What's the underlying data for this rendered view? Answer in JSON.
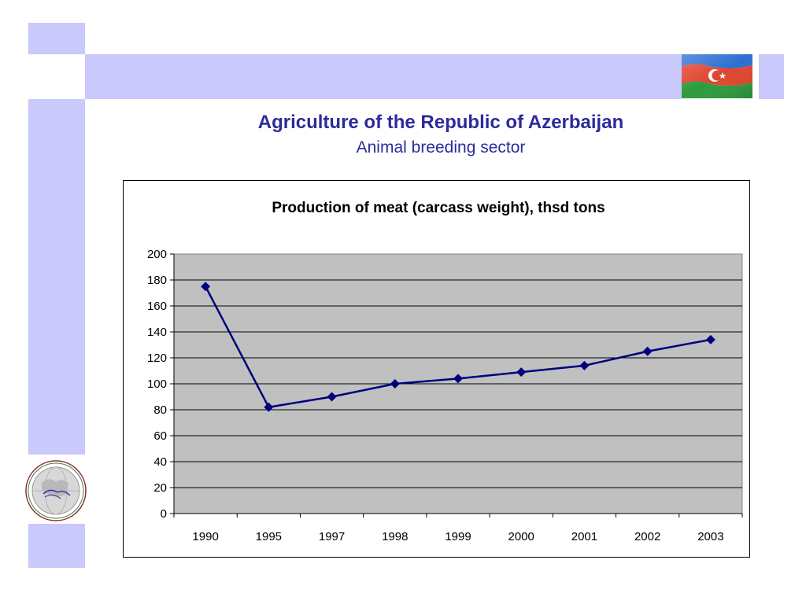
{
  "header": {
    "title": "Agriculture of the Republic of Azerbaijan",
    "subtitle": "Animal breeding sector"
  },
  "colors": {
    "decor_band": "#c9c9fb",
    "title_text": "#2b2b9c",
    "plot_background": "#c0c0c0",
    "series_line": "#00007f"
  },
  "images": {
    "flag": "azerbaijan-flag",
    "logo": "globe-emblem-logo"
  },
  "chart_data": {
    "type": "line",
    "title": "Production of meat (carcass weight), thsd tons",
    "xlabel": "",
    "ylabel": "",
    "categories": [
      "1990",
      "1995",
      "1997",
      "1998",
      "1999",
      "2000",
      "2001",
      "2002",
      "2003"
    ],
    "series": [
      {
        "values": [
          175,
          82,
          90,
          100,
          104,
          109,
          114,
          125,
          134
        ]
      }
    ],
    "ylim": [
      0,
      200
    ],
    "yticks": [
      0,
      20,
      40,
      60,
      80,
      100,
      120,
      140,
      160,
      180,
      200
    ],
    "grid": "horizontal",
    "legend": "none",
    "marker": "diamond"
  }
}
